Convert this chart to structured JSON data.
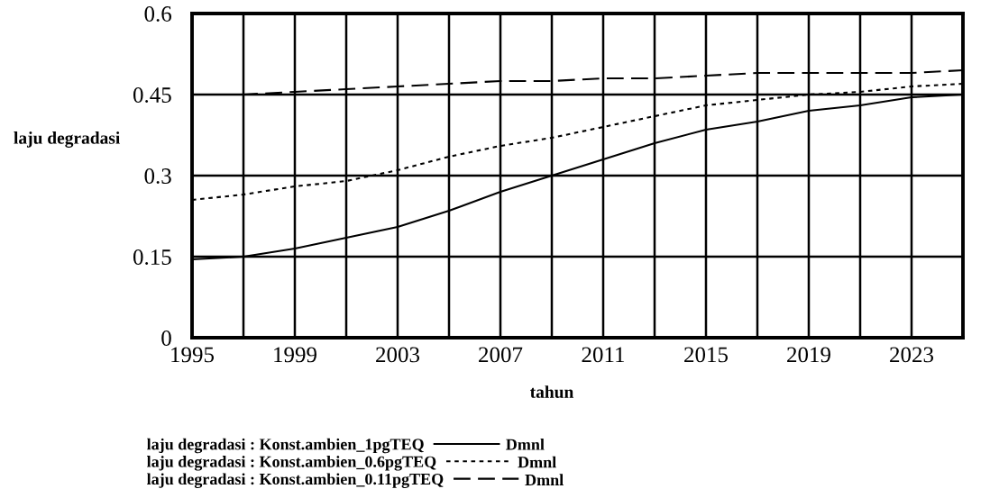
{
  "chart_data": {
    "type": "line",
    "xlabel": "tahun",
    "ylabel": "laju degradasi",
    "x": [
      1995,
      1997,
      1999,
      2001,
      2003,
      2005,
      2007,
      2009,
      2011,
      2013,
      2015,
      2017,
      2019,
      2021,
      2023,
      2025
    ],
    "series": [
      {
        "name": "laju degradasi : Konst.ambien_1pgTEQ",
        "color": "#000000",
        "line_style": "solid",
        "values": [
          0.145,
          0.15,
          0.165,
          0.185,
          0.205,
          0.235,
          0.27,
          0.3,
          0.33,
          0.36,
          0.385,
          0.4,
          0.42,
          0.43,
          0.445,
          0.45
        ]
      },
      {
        "name": "laju degradasi : Konst.ambien_0.6pgTEQ",
        "color": "#000000",
        "line_style": "dotted",
        "values": [
          0.255,
          0.265,
          0.28,
          0.29,
          0.31,
          0.335,
          0.355,
          0.37,
          0.39,
          0.41,
          0.43,
          0.44,
          0.45,
          0.455,
          0.465,
          0.47
        ]
      },
      {
        "name": "laju degradasi : Konst.ambien_0.11pgTEQ",
        "color": "#000000",
        "line_style": "dashed",
        "values": [
          0.45,
          0.45,
          0.455,
          0.46,
          0.465,
          0.47,
          0.475,
          0.475,
          0.48,
          0.48,
          0.485,
          0.49,
          0.49,
          0.49,
          0.49,
          0.495
        ]
      }
    ],
    "xlim": [
      1995,
      2025
    ],
    "xticks": [
      1995,
      {
        "value": 1997,
        "label": null
      },
      1999,
      {
        "value": 2001,
        "label": null
      },
      2003,
      {
        "value": 2005,
        "label": null
      },
      2007,
      {
        "value": 2009,
        "label": null
      },
      2011,
      {
        "value": 2013,
        "label": null
      },
      2015,
      {
        "value": 2017,
        "label": null
      },
      2019,
      {
        "value": 2021,
        "label": null
      },
      2023
    ],
    "ylim": [
      0,
      0.6
    ],
    "yticks": [
      0,
      0.15,
      0.3,
      0.45,
      0.6
    ],
    "grid": true,
    "legend": "bottom",
    "annotations": [
      "Dmnl",
      "Dmnl",
      "Dmnl"
    ]
  }
}
